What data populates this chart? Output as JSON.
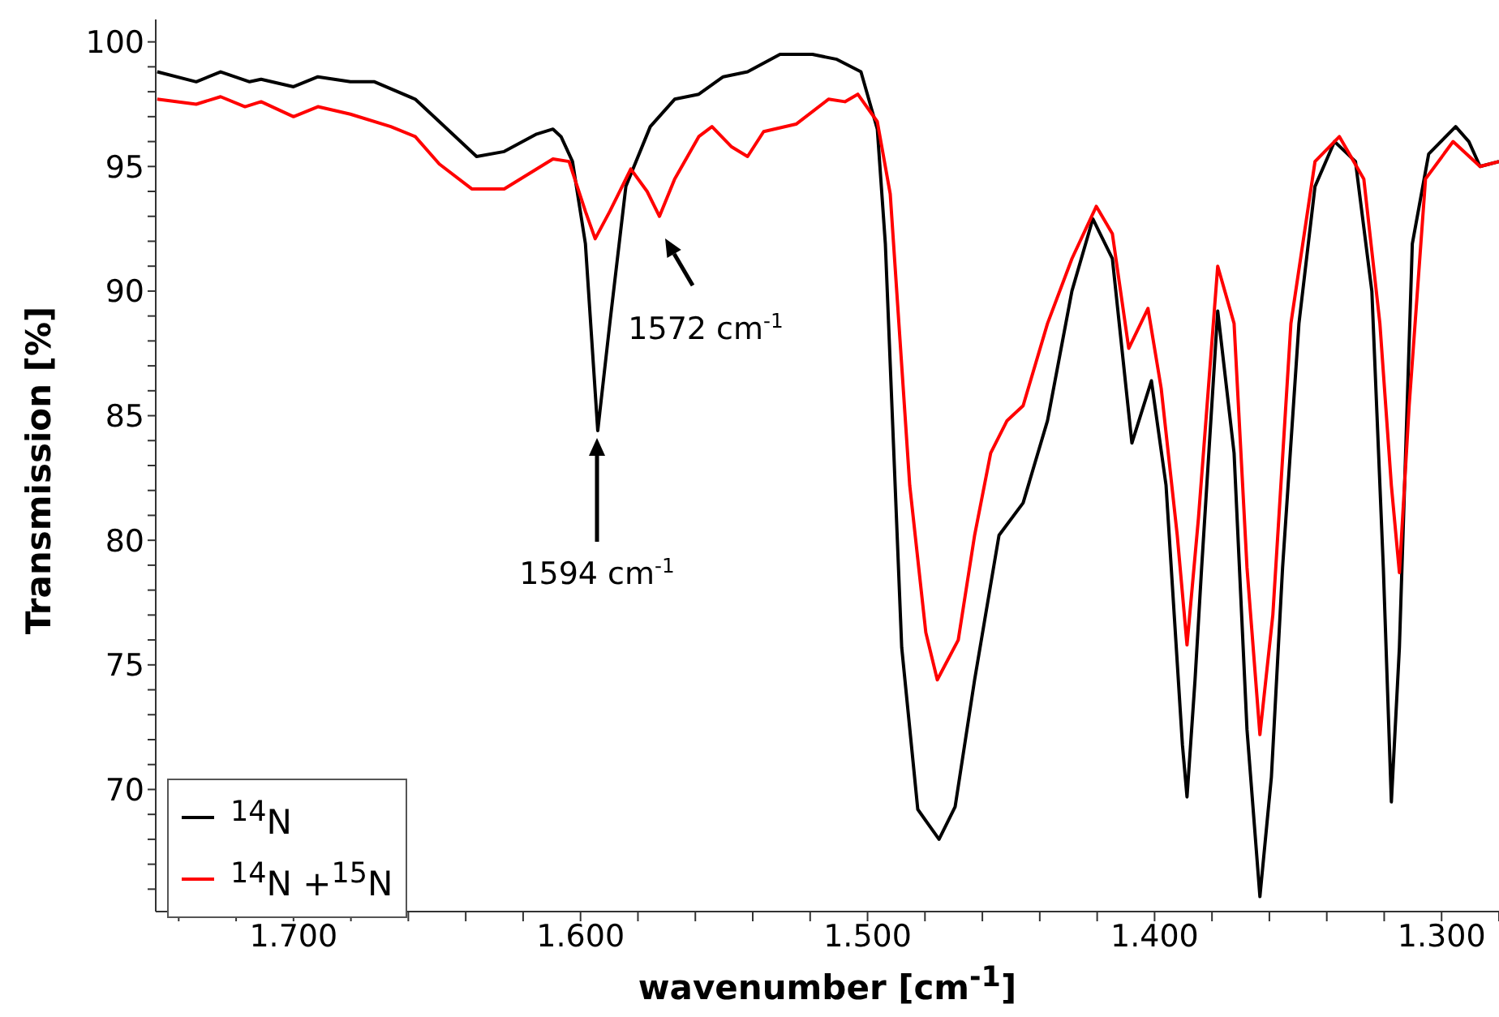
{
  "chart_data": {
    "type": "line",
    "xlabel": "wavenumber [cm$^{-1}$]",
    "ylabel": "Transmission [%]",
    "xlim": [
      1748,
      1280
    ],
    "ylim": [
      65.1,
      100.9
    ],
    "xticks": [
      {
        "value": 1740,
        "label": null
      },
      {
        "value": 1720,
        "label": null
      },
      {
        "value": 1700,
        "label": "1.700"
      },
      {
        "value": 1680,
        "label": null
      },
      {
        "value": 1660,
        "label": null
      },
      {
        "value": 1640,
        "label": null
      },
      {
        "value": 1620,
        "label": null
      },
      {
        "value": 1600,
        "label": "1.600"
      },
      {
        "value": 1580,
        "label": null
      },
      {
        "value": 1560,
        "label": null
      },
      {
        "value": 1540,
        "label": null
      },
      {
        "value": 1520,
        "label": null
      },
      {
        "value": 1500,
        "label": "1.500"
      },
      {
        "value": 1480,
        "label": null
      },
      {
        "value": 1460,
        "label": null
      },
      {
        "value": 1440,
        "label": null
      },
      {
        "value": 1420,
        "label": null
      },
      {
        "value": 1400,
        "label": "1.400"
      },
      {
        "value": 1380,
        "label": null
      },
      {
        "value": 1360,
        "label": null
      },
      {
        "value": 1340,
        "label": null
      },
      {
        "value": 1320,
        "label": null
      },
      {
        "value": 1300,
        "label": "1.300"
      },
      {
        "value": 1280,
        "label": null
      }
    ],
    "yticks": [
      {
        "value": 66,
        "label": null
      },
      {
        "value": 67,
        "label": null
      },
      {
        "value": 68,
        "label": null
      },
      {
        "value": 69,
        "label": null
      },
      70,
      {
        "value": 71,
        "label": null
      },
      {
        "value": 72,
        "label": null
      },
      {
        "value": 73,
        "label": null
      },
      {
        "value": 74,
        "label": null
      },
      75,
      {
        "value": 76,
        "label": null
      },
      {
        "value": 77,
        "label": null
      },
      {
        "value": 78,
        "label": null
      },
      {
        "value": 79,
        "label": null
      },
      80,
      {
        "value": 81,
        "label": null
      },
      {
        "value": 82,
        "label": null
      },
      {
        "value": 83,
        "label": null
      },
      {
        "value": 84,
        "label": null
      },
      85,
      {
        "value": 86,
        "label": null
      },
      {
        "value": 87,
        "label": null
      },
      {
        "value": 88,
        "label": null
      },
      {
        "value": 89,
        "label": null
      },
      90,
      {
        "value": 91,
        "label": null
      },
      {
        "value": 92,
        "label": null
      },
      {
        "value": 93,
        "label": null
      },
      {
        "value": 94,
        "label": null
      },
      95,
      {
        "value": 96,
        "label": null
      },
      {
        "value": 97,
        "label": null
      },
      {
        "value": 98,
        "label": null
      },
      {
        "value": 99,
        "label": null
      },
      100
    ],
    "legend": "bottom left",
    "grid": false,
    "marker": "none",
    "line_style": "solid",
    "annotations": [
      "1594 cm$^{-1}$",
      "1572 cm$^{-1}$"
    ],
    "series": [
      {
        "name": "$^{14}$N",
        "color": "#000000",
        "x": [
          1747.5,
          1733.9,
          1725.4,
          1715.3,
          1711.3,
          1700,
          1691.5,
          1680.2,
          1671.8,
          1657.6,
          1649.2,
          1636.2,
          1626.6,
          1615.3,
          1609.6,
          1606.8,
          1602.8,
          1598.3,
          1594,
          1589.8,
          1584.2,
          1575.7,
          1567.2,
          1558.8,
          1550.3,
          1541.8,
          1530.5,
          1519.2,
          1510.7,
          1502.3,
          1496.6,
          1493.8,
          1488.1,
          1482.5,
          1475.1,
          1469.5,
          1462.7,
          1454.2,
          1445.8,
          1437.3,
          1428.8,
          1421.5,
          1414.7,
          1407.9,
          1401.1,
          1396.0,
          1390.3,
          1388.7,
          1385.9,
          1383.6,
          1378,
          1372.3,
          1367.8,
          1363.3,
          1359.3,
          1355.4,
          1349.7,
          1344.1,
          1337.3,
          1330,
          1324.3,
          1320.3,
          1317.5,
          1314.7,
          1310.2,
          1304.5,
          1295.1,
          1290.5,
          1286.6,
          1280
        ],
        "values": [
          98.8,
          98.4,
          98.8,
          98.4,
          98.5,
          98.2,
          98.6,
          98.4,
          98.4,
          97.7,
          96.8,
          95.4,
          95.6,
          96.3,
          96.5,
          96.2,
          95.2,
          91.9,
          84.4,
          88.7,
          94.2,
          96.6,
          97.7,
          97.9,
          98.6,
          98.8,
          99.5,
          99.5,
          99.3,
          98.8,
          96.5,
          91.9,
          75.7,
          69.2,
          68.0,
          69.3,
          74.4,
          80.2,
          81.5,
          84.8,
          90.0,
          92.9,
          91.3,
          83.9,
          86.4,
          82.2,
          71.8,
          69.7,
          74.4,
          78.9,
          89.2,
          83.5,
          72.4,
          65.7,
          70.5,
          78.9,
          88.7,
          94.2,
          96.0,
          95.2,
          90.0,
          78.9,
          69.5,
          75.7,
          91.9,
          95.5,
          96.6,
          96.0,
          95.0,
          95.2
        ]
      },
      {
        "name": "$^{14}$N +$^{15}$N",
        "color": "#ff0000",
        "x": [
          1747.5,
          1733.9,
          1725.4,
          1716.9,
          1711.3,
          1700,
          1691.5,
          1680.2,
          1666.1,
          1657.6,
          1649.2,
          1637.9,
          1626.6,
          1618.1,
          1609.6,
          1604,
          1598.3,
          1594.9,
          1589.8,
          1582.5,
          1576.8,
          1572.5,
          1567.2,
          1558.8,
          1554.2,
          1547.5,
          1541.8,
          1536.2,
          1524.9,
          1513.6,
          1507.9,
          1503.4,
          1496.6,
          1492.1,
          1485.3,
          1479.7,
          1475.7,
          1468.4,
          1462.7,
          1457.1,
          1451.4,
          1445.8,
          1437.3,
          1428.8,
          1420.3,
          1414.7,
          1409,
          1402.3,
          1397.7,
          1392.1,
          1388.7,
          1384.7,
          1378,
          1372.3,
          1367.8,
          1363.3,
          1358.8,
          1352.5,
          1344.1,
          1335.6,
          1327.1,
          1321.5,
          1317.5,
          1314.7,
          1311.3,
          1305.6,
          1296,
          1286.6,
          1280
        ],
        "values": [
          97.7,
          97.5,
          97.8,
          97.4,
          97.6,
          97.0,
          97.4,
          97.1,
          96.6,
          96.2,
          95.1,
          94.1,
          94.1,
          94.7,
          95.3,
          95.2,
          93.2,
          92.1,
          93.2,
          94.9,
          94.0,
          93.0,
          94.5,
          96.2,
          96.6,
          95.8,
          95.4,
          96.4,
          96.7,
          97.7,
          97.6,
          97.9,
          96.8,
          93.9,
          82.2,
          76.3,
          74.4,
          76.0,
          80.2,
          83.5,
          84.8,
          85.4,
          88.7,
          91.3,
          93.4,
          92.3,
          87.7,
          89.3,
          86.1,
          80.2,
          75.8,
          80.9,
          91.0,
          88.7,
          78.9,
          72.2,
          77.0,
          88.7,
          95.2,
          96.2,
          94.5,
          88.7,
          82.2,
          78.7,
          85.4,
          94.5,
          96.0,
          95.0,
          95.2
        ]
      }
    ]
  }
}
